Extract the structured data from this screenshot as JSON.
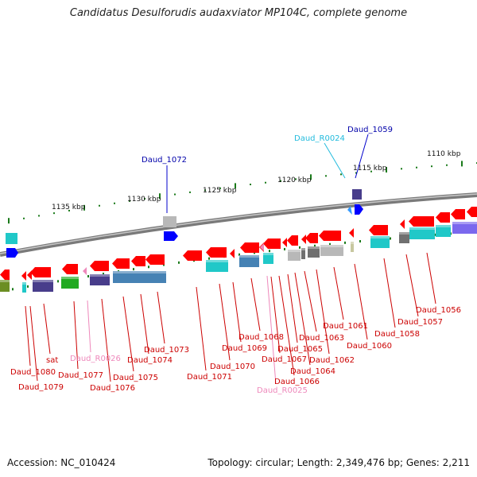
{
  "title": "Candidatus Desulforudis audaxviator MP104C, complete genome",
  "footer": {
    "accession": "Accession: NC_010424",
    "summary": "Topology: circular; Length: 2,349,476 bp; Genes: 2,211"
  },
  "colors": {
    "backbone": "#8c8c8c",
    "tick": "#1a7a1a",
    "cds": "#ff0000",
    "rna_label": "#ee88bb",
    "gene_label": "#cc0000",
    "rna_gene": "#3399ff",
    "top_label": "#0000aa",
    "trna_label": "#22bbdd"
  },
  "scale_labels": [
    "1110 kbp",
    "1115 kbp",
    "1120 kbp",
    "1125 kbp",
    "1130 kbp",
    "1135 kbp"
  ],
  "top_labels": [
    "Daud_1072",
    "Daud_R0024",
    "Daud_1059"
  ],
  "gene_labels": [
    "Daud_1056",
    "Daud_1057",
    "Daud_1058",
    "Daud_1060",
    "Daud_1061",
    "Daud_1062",
    "Daud_1063",
    "Daud_1064",
    "Daud_1065",
    "Daud_1066",
    "Daud_R0025",
    "Daud_1067",
    "Daud_1068",
    "Daud_1069",
    "Daud_1070",
    "Daud_1071",
    "Daud_1073",
    "Daud_1074",
    "Daud_1075",
    "Daud_1076",
    "Daud_R0026",
    "Daud_1077",
    "sat",
    "Daud_1079",
    "Daud_1080"
  ]
}
